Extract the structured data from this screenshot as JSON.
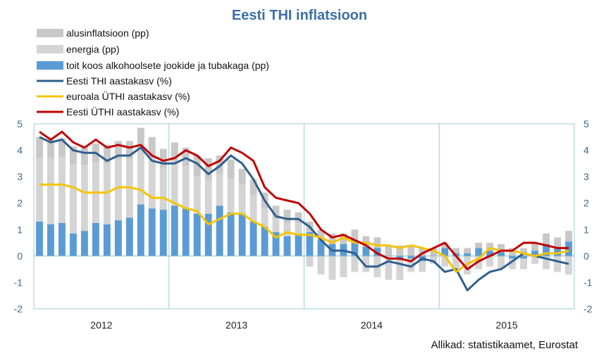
{
  "chart_data": {
    "type": "bar",
    "title": "Eesti THI inflatsioon",
    "source": "Allikad: statistikaamet, Eurostat",
    "ylim": [
      -2,
      5
    ],
    "yticks": [
      "-2",
      "-1",
      "0",
      "1",
      "2",
      "3",
      "4",
      "5"
    ],
    "year_labels": [
      "2012",
      "2013",
      "2014",
      "2015"
    ],
    "months_per_year": 12,
    "stacked": true,
    "grid": "vertical lines at year boundaries",
    "legend_position": "top-left",
    "months": 48,
    "series": [
      {
        "name": "alusinflatsioon (pp)",
        "kind": "bar",
        "color": "#c8c8c8",
        "values": [
          0.8,
          0.7,
          0.7,
          0.7,
          0.7,
          0.7,
          0.7,
          0.7,
          0.7,
          0.7,
          0.7,
          0.7,
          0.7,
          0.7,
          0.8,
          0.8,
          0.7,
          0.7,
          0.6,
          0.6,
          0.6,
          0.5,
          0.5,
          0.4,
          0.4,
          0.4,
          0.4,
          0.4,
          0.4,
          0.4,
          0.4,
          0.4,
          0.4,
          0.4,
          0.3,
          0.3,
          0.2,
          0.2,
          0.2,
          0.2,
          0.3,
          0.3,
          0.3,
          0.3,
          0.3,
          0.4,
          0.4,
          0.4
        ]
      },
      {
        "name": "energia (pp)",
        "kind": "bar",
        "color": "#d4d4d4",
        "values": [
          2.4,
          2.5,
          2.5,
          2.6,
          2.5,
          2.3,
          2.3,
          2.3,
          2.2,
          2.2,
          2.0,
          1.6,
          1.7,
          1.6,
          1.4,
          1.3,
          1.2,
          1.3,
          1.1,
          1.0,
          0.7,
          0.5,
          0.5,
          0.4,
          -0.4,
          -0.7,
          -0.9,
          -0.8,
          -0.6,
          -0.6,
          -0.8,
          -0.9,
          -0.8,
          -0.5,
          -0.4,
          -0.3,
          -0.4,
          -0.5,
          -0.7,
          -0.5,
          -0.4,
          -0.5,
          -0.4,
          -0.4,
          -0.3,
          -0.5,
          -0.6,
          -0.7
        ]
      },
      {
        "name": "toit koos alkohoolsete jookide ja tubakaga (pp)",
        "kind": "bar",
        "color": "#5b9bd5",
        "values": [
          1.3,
          1.2,
          1.25,
          0.85,
          0.95,
          1.25,
          1.2,
          1.35,
          1.45,
          1.95,
          1.8,
          1.75,
          1.9,
          1.8,
          1.6,
          1.6,
          1.9,
          1.65,
          1.6,
          1.3,
          1.1,
          0.9,
          0.75,
          0.85,
          0.9,
          0.6,
          0.45,
          0.45,
          0.6,
          0.35,
          0.3,
          0.0,
          -0.1,
          -0.1,
          -0.2,
          0.0,
          0.3,
          0.1,
          0.1,
          0.3,
          0.2,
          0.15,
          -0.1,
          -0.1,
          0.2,
          0.45,
          0.3,
          0.55
        ]
      },
      {
        "name": "Eesti THI aastakasv (%)",
        "kind": "line",
        "color": "#2f5f8f",
        "values": [
          4.5,
          4.3,
          4.4,
          4.0,
          3.9,
          3.9,
          3.6,
          3.8,
          3.8,
          4.1,
          3.6,
          3.5,
          3.5,
          3.7,
          3.5,
          3.1,
          3.4,
          3.8,
          3.5,
          2.9,
          2.1,
          1.5,
          1.4,
          1.4,
          1.1,
          0.6,
          0.2,
          0.2,
          0.1,
          -0.4,
          -0.4,
          -0.2,
          -0.3,
          -0.4,
          -0.1,
          -0.2,
          -0.6,
          -0.5,
          -1.3,
          -0.9,
          -0.6,
          -0.5,
          -0.2,
          0.1,
          0.0,
          -0.1,
          -0.2,
          -0.3
        ]
      },
      {
        "name": "euroala ÜTHI aastakasv (%)",
        "kind": "line",
        "color": "#f5c400",
        "values": [
          2.7,
          2.7,
          2.7,
          2.6,
          2.4,
          2.4,
          2.4,
          2.6,
          2.6,
          2.5,
          2.2,
          2.2,
          2.0,
          1.8,
          1.7,
          1.2,
          1.4,
          1.6,
          1.6,
          1.3,
          1.1,
          0.7,
          0.9,
          0.8,
          0.8,
          0.7,
          0.5,
          0.7,
          0.5,
          0.5,
          0.4,
          0.4,
          0.3,
          0.4,
          0.3,
          0.2,
          0.0,
          -0.6,
          -0.3,
          -0.1,
          0.3,
          0.2,
          0.2,
          0.1,
          0.0,
          0.1,
          0.1,
          0.2
        ]
      },
      {
        "name": "Eesti ÜTHI aastakasv (%)",
        "kind": "line",
        "color": "#c00000",
        "values": [
          4.7,
          4.4,
          4.7,
          4.3,
          4.1,
          4.4,
          4.1,
          4.2,
          4.1,
          4.2,
          3.8,
          3.6,
          3.7,
          4.0,
          3.8,
          3.4,
          3.6,
          4.1,
          3.9,
          3.6,
          2.6,
          2.2,
          2.1,
          2.0,
          1.6,
          1.0,
          0.7,
          0.8,
          0.6,
          0.4,
          0.1,
          -0.1,
          -0.1,
          -0.2,
          0.1,
          0.3,
          0.5,
          0.0,
          -0.5,
          -0.2,
          0.0,
          0.2,
          0.2,
          0.5,
          0.5,
          0.4,
          0.3,
          0.3
        ]
      }
    ]
  }
}
